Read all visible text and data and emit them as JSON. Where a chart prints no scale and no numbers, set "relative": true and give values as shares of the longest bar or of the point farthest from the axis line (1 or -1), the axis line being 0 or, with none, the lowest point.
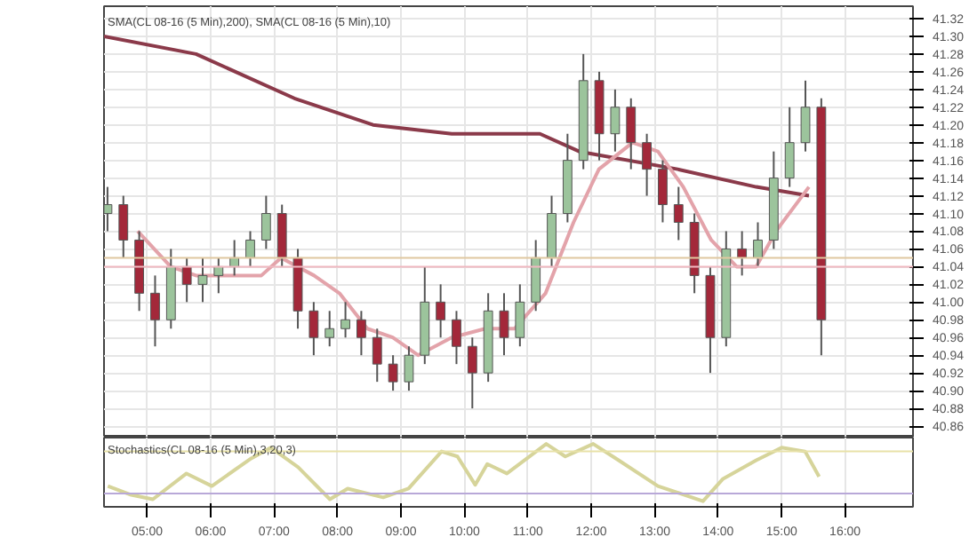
{
  "chart_data": [
    {
      "type": "candlestick",
      "title": "SMA(CL 08-16 (5 Min),200), SMA(CL 08-16 (5 Min),10)",
      "x": [
        4.375,
        4.625,
        4.875,
        5.125,
        5.375,
        5.625,
        5.875,
        6.125,
        6.375,
        6.625,
        6.875,
        7.125,
        7.375,
        7.625,
        7.875,
        8.125,
        8.375,
        8.625,
        8.875,
        9.125,
        9.375,
        9.625,
        9.875,
        10.125,
        10.375,
        10.625,
        10.875,
        11.125,
        11.375,
        11.625,
        11.875,
        12.125,
        12.375,
        12.625,
        12.875,
        13.125,
        13.375,
        13.625,
        13.875,
        14.125,
        14.375,
        14.625,
        14.875,
        15.125,
        15.375,
        15.625
      ],
      "ohlc": [
        [
          41.1,
          41.13,
          41.08,
          41.11
        ],
        [
          41.11,
          41.12,
          41.05,
          41.07
        ],
        [
          41.07,
          41.08,
          40.99,
          41.01
        ],
        [
          41.01,
          41.03,
          40.95,
          40.98
        ],
        [
          40.98,
          41.06,
          40.97,
          41.04
        ],
        [
          41.04,
          41.05,
          41.0,
          41.02
        ],
        [
          41.02,
          41.05,
          41.0,
          41.03
        ],
        [
          41.03,
          41.05,
          41.01,
          41.04
        ],
        [
          41.04,
          41.07,
          41.03,
          41.05
        ],
        [
          41.05,
          41.08,
          41.04,
          41.07
        ],
        [
          41.07,
          41.12,
          41.06,
          41.1
        ],
        [
          41.1,
          41.11,
          41.04,
          41.05
        ],
        [
          41.05,
          41.06,
          40.97,
          40.99
        ],
        [
          40.99,
          41.0,
          40.94,
          40.96
        ],
        [
          40.96,
          40.99,
          40.95,
          40.97
        ],
        [
          40.97,
          41.0,
          40.96,
          40.98
        ],
        [
          40.98,
          40.99,
          40.94,
          40.96
        ],
        [
          40.96,
          40.97,
          40.91,
          40.93
        ],
        [
          40.93,
          40.94,
          40.9,
          40.91
        ],
        [
          40.91,
          40.95,
          40.9,
          40.94
        ],
        [
          40.94,
          41.04,
          40.93,
          41.0
        ],
        [
          41.0,
          41.02,
          40.96,
          40.98
        ],
        [
          40.98,
          40.99,
          40.93,
          40.95
        ],
        [
          40.95,
          40.96,
          40.88,
          40.92
        ],
        [
          40.92,
          41.01,
          40.91,
          40.99
        ],
        [
          40.99,
          41.01,
          40.94,
          40.96
        ],
        [
          40.96,
          41.02,
          40.95,
          41.0
        ],
        [
          41.0,
          41.07,
          40.99,
          41.05
        ],
        [
          41.05,
          41.12,
          41.04,
          41.1
        ],
        [
          41.1,
          41.19,
          41.09,
          41.16
        ],
        [
          41.16,
          41.28,
          41.15,
          41.25
        ],
        [
          41.25,
          41.26,
          41.16,
          41.19
        ],
        [
          41.19,
          41.24,
          41.17,
          41.22
        ],
        [
          41.22,
          41.23,
          41.15,
          41.18
        ],
        [
          41.18,
          41.19,
          41.12,
          41.15
        ],
        [
          41.15,
          41.16,
          41.09,
          41.11
        ],
        [
          41.11,
          41.13,
          41.07,
          41.09
        ],
        [
          41.09,
          41.1,
          41.01,
          41.03
        ],
        [
          41.03,
          41.04,
          40.92,
          40.96
        ],
        [
          40.96,
          41.08,
          40.95,
          41.06
        ],
        [
          41.06,
          41.08,
          41.03,
          41.05
        ],
        [
          41.05,
          41.09,
          41.04,
          41.07
        ],
        [
          41.07,
          41.17,
          41.06,
          41.14
        ],
        [
          41.14,
          41.22,
          41.13,
          41.18
        ],
        [
          41.18,
          41.25,
          41.17,
          41.22
        ],
        [
          41.22,
          41.23,
          40.94,
          40.98
        ]
      ],
      "series": [
        {
          "type": "line",
          "color": "#8b3a4a",
          "x": [
            4.32,
            5.77,
            7.32,
            8.56,
            9.8,
            10.26,
            11.19,
            11.81,
            13.36,
            14.6,
            15.43
          ],
          "values": [
            41.3,
            41.28,
            41.23,
            41.2,
            41.19,
            41.19,
            41.19,
            41.17,
            41.15,
            41.13,
            41.12
          ]
        },
        {
          "type": "line",
          "color": "#e3a3aa",
          "x": [
            4.85,
            5.37,
            5.77,
            6.39,
            6.8,
            7.11,
            7.63,
            8.03,
            8.47,
            8.87,
            9.27,
            9.8,
            10.33,
            10.79,
            11.28,
            11.72,
            12.12,
            12.65,
            13.05,
            13.45,
            13.89,
            14.29,
            14.6,
            14.91,
            15.43
          ],
          "values": [
            41.08,
            41.04,
            41.03,
            41.03,
            41.03,
            41.05,
            41.03,
            41.01,
            40.97,
            40.96,
            40.94,
            40.96,
            40.97,
            40.97,
            41.01,
            41.09,
            41.15,
            41.18,
            41.17,
            41.13,
            41.07,
            41.04,
            41.04,
            41.08,
            41.13
          ]
        }
      ],
      "ref_lines": [
        {
          "axis": "y",
          "value": 41.05,
          "color": "#e0c8a0"
        },
        {
          "axis": "y",
          "value": 41.04,
          "color": "#f0b8c0"
        }
      ],
      "xlim": [
        4.32,
        17.07
      ],
      "xticks": [
        {
          "value": 5,
          "label": null
        },
        {
          "value": 6,
          "label": null
        },
        {
          "value": 7,
          "label": null
        },
        {
          "value": 8,
          "label": null
        },
        {
          "value": 9,
          "label": null
        },
        {
          "value": 10,
          "label": null
        },
        {
          "value": 11,
          "label": null
        },
        {
          "value": 12,
          "label": null
        },
        {
          "value": 13,
          "label": null
        },
        {
          "value": 14,
          "label": null
        },
        {
          "value": 15,
          "label": null
        },
        {
          "value": 16,
          "label": null
        }
      ],
      "ylim": [
        40.847,
        41.334
      ],
      "yticks": [
        {
          "value": 40.86,
          "label": "40.86"
        },
        {
          "value": 40.88,
          "label": "40.88"
        },
        {
          "value": 40.9,
          "label": "40.90"
        },
        {
          "value": 40.92,
          "label": "40.92"
        },
        {
          "value": 40.94,
          "label": "40.94"
        },
        {
          "value": 40.96,
          "label": "40.96"
        },
        {
          "value": 40.98,
          "label": "40.98"
        },
        {
          "value": 41.0,
          "label": "41.00"
        },
        {
          "value": 41.02,
          "label": "41.02"
        },
        {
          "value": 41.04,
          "label": "41.04"
        },
        {
          "value": 41.06,
          "label": "41.06"
        },
        {
          "value": 41.08,
          "label": "41.08"
        },
        {
          "value": 41.1,
          "label": "41.10"
        },
        {
          "value": 41.12,
          "label": "41.12"
        },
        {
          "value": 41.14,
          "label": "41.14"
        },
        {
          "value": 41.16,
          "label": "41.16"
        },
        {
          "value": 41.18,
          "label": "41.18"
        },
        {
          "value": 41.2,
          "label": "41.20"
        },
        {
          "value": 41.22,
          "label": "41.22"
        },
        {
          "value": 41.24,
          "label": "41.24"
        },
        {
          "value": 41.26,
          "label": "41.26"
        },
        {
          "value": 41.28,
          "label": "41.28"
        },
        {
          "value": 41.3,
          "label": "41.30"
        },
        {
          "value": 41.32,
          "label": "41.32"
        }
      ],
      "tick_labels": "y",
      "grid": true
    },
    {
      "type": "line",
      "title": "Stochastics(CL 08-16 (5 Min),3,20,3)",
      "relative": true,
      "series": [
        {
          "color": "#d6d49a",
          "x": [
            4.38,
            4.75,
            5.09,
            5.62,
            6.02,
            6.64,
            6.95,
            7.38,
            7.88,
            8.16,
            8.72,
            9.12,
            9.64,
            9.89,
            10.17,
            10.36,
            10.67,
            11.29,
            11.59,
            12.03,
            12.43,
            13.05,
            13.76,
            14.07,
            14.6,
            15.0,
            15.37,
            15.59
          ],
          "values": [
            0.33,
            0.19,
            0.12,
            0.53,
            0.33,
            0.77,
            0.94,
            0.63,
            0.12,
            0.29,
            0.15,
            0.29,
            0.88,
            0.8,
            0.35,
            0.68,
            0.53,
            1.0,
            0.8,
            1.0,
            0.74,
            0.33,
            0.09,
            0.44,
            0.74,
            0.94,
            0.88,
            0.48
          ]
        }
      ],
      "ref_lines": [
        {
          "axis": "y",
          "value": 0.88,
          "color": "#e8e2a8"
        },
        {
          "axis": "y",
          "value": 0.21,
          "color": "#b8a8d8"
        }
      ],
      "xlim": [
        4.32,
        17.07
      ],
      "xticks": [
        {
          "value": 5,
          "label": "05:00"
        },
        {
          "value": 6,
          "label": "06:00"
        },
        {
          "value": 7,
          "label": "07:00"
        },
        {
          "value": 8,
          "label": "08:00"
        },
        {
          "value": 9,
          "label": "09:00"
        },
        {
          "value": 10,
          "label": "10:00"
        },
        {
          "value": 11,
          "label": "11:00"
        },
        {
          "value": 12,
          "label": "12:00"
        },
        {
          "value": 13,
          "label": "13:00"
        },
        {
          "value": 14,
          "label": "14:00"
        },
        {
          "value": 15,
          "label": "15:00"
        },
        {
          "value": 16,
          "label": "16:00"
        }
      ],
      "tick_labels": "x",
      "grid": "x"
    }
  ]
}
